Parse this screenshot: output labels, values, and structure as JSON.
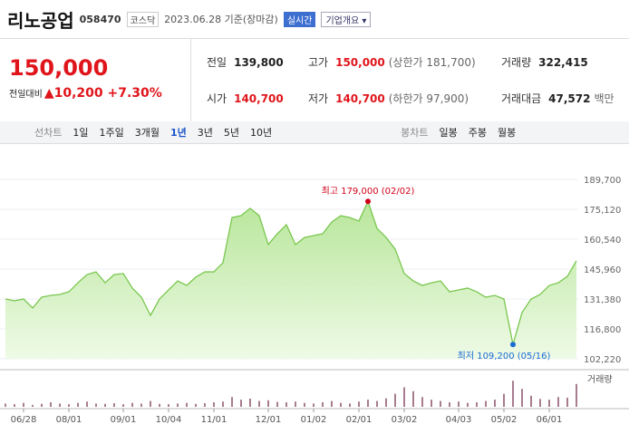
{
  "header": {
    "name": "리노공업",
    "code": "058470",
    "market": "코스닥",
    "date": "2023.06.28 기준(장마감)",
    "badge": "실시간",
    "button": "기업개요"
  },
  "quote": {
    "price": "150,000",
    "change_label": "전일대비",
    "change": "10,200",
    "change_rate": "+7.30%",
    "cells": [
      [
        "전일",
        "139,800",
        ""
      ],
      [
        "고가",
        "150,000",
        "(상한가 181,700)"
      ],
      [
        "거래량",
        "322,415",
        ""
      ],
      [
        "시가",
        "140,700",
        ""
      ],
      [
        "저가",
        "140,700",
        "(하한가 97,900)"
      ],
      [
        "거래대금",
        "47,572",
        "백만"
      ]
    ]
  },
  "tabs": {
    "line_label": "선차트",
    "line": [
      "1일",
      "1주일",
      "3개월",
      "1년",
      "3년",
      "5년",
      "10년"
    ],
    "selected": 3,
    "candle_label": "봉차트",
    "candle": [
      "일봉",
      "주봉",
      "월봉"
    ]
  },
  "chart_data": {
    "type": "line",
    "color": "#7ac74f",
    "categories": [
      null,
      null,
      "06/28",
      null,
      null,
      null,
      null,
      "08/01",
      null,
      null,
      null,
      null,
      null,
      "09/01",
      null,
      null,
      null,
      null,
      "10/04",
      null,
      null,
      null,
      null,
      "11/01",
      null,
      null,
      null,
      null,
      null,
      "12/01",
      null,
      null,
      null,
      null,
      "01/02",
      null,
      null,
      null,
      null,
      "02/01",
      null,
      null,
      null,
      null,
      "03/02",
      null,
      null,
      null,
      null,
      null,
      "04/03",
      null,
      null,
      null,
      null,
      "05/02",
      null,
      null,
      null,
      null,
      "06/01",
      null,
      null,
      null
    ],
    "values": [
      131380,
      130500,
      131380,
      127000,
      132260,
      133150,
      133600,
      134900,
      139300,
      143300,
      144600,
      139300,
      143300,
      143800,
      136700,
      132260,
      123400,
      131380,
      135800,
      140200,
      138000,
      142000,
      144600,
      144600,
      149100,
      171100,
      172000,
      175600,
      172000,
      157900,
      163200,
      167600,
      157900,
      161400,
      162300,
      163200,
      168900,
      172000,
      171100,
      169400,
      179000,
      165800,
      161400,
      155700,
      143800,
      140200,
      138000,
      139300,
      140200,
      134900,
      135800,
      136700,
      134900,
      132260,
      133150,
      131380,
      109200,
      124800,
      131380,
      133600,
      138000,
      139300,
      142400,
      150000
    ],
    "ylim": [
      102220,
      189700
    ],
    "yticks": [
      {
        "value": 102220,
        "label": "102,220"
      },
      {
        "value": 116800,
        "label": "116,800"
      },
      {
        "value": 131380,
        "label": "131,380"
      },
      {
        "value": 145960,
        "label": "145,960"
      },
      {
        "value": 160540,
        "label": "160,540"
      },
      {
        "value": 175120,
        "label": "175,120"
      },
      {
        "value": 189700,
        "label": "189,700"
      }
    ],
    "grid": true,
    "annotations": [
      {
        "text": "최고 179,000 (02/02)",
        "index": 40,
        "color": "#d0021b"
      },
      {
        "text": "최저 109,200 (05/16)",
        "index": 56,
        "color": "#1a6bd6"
      }
    ],
    "volume_label": "거래량",
    "volume_color": "#a87c8f",
    "volume_ylim": [
      0,
      100
    ],
    "volume": [
      10,
      8,
      12,
      6,
      9,
      14,
      10,
      8,
      12,
      16,
      10,
      9,
      11,
      8,
      12,
      10,
      18,
      9,
      8,
      10,
      12,
      9,
      11,
      14,
      16,
      30,
      22,
      25,
      18,
      20,
      15,
      14,
      16,
      12,
      10,
      14,
      18,
      12,
      10,
      16,
      22,
      18,
      26,
      40,
      60,
      48,
      30,
      22,
      18,
      14,
      16,
      12,
      14,
      18,
      22,
      40,
      80,
      55,
      34,
      24,
      22,
      30,
      28,
      70
    ]
  }
}
